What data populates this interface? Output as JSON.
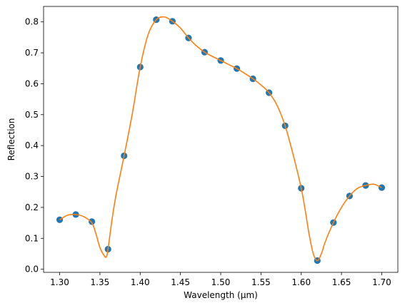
{
  "chart_data": {
    "type": "line",
    "title": "",
    "xlabel": "Wavelength (μm)",
    "ylabel": "Reflection",
    "xlim": [
      1.28,
      1.72
    ],
    "ylim": [
      -0.01,
      0.85
    ],
    "grid": false,
    "x_ticks": [
      "1.30",
      "1.35",
      "1.40",
      "1.45",
      "1.50",
      "1.55",
      "1.60",
      "1.65",
      "1.70"
    ],
    "y_ticks": [
      "0.0",
      "0.1",
      "0.2",
      "0.3",
      "0.4",
      "0.5",
      "0.6",
      "0.7",
      "0.8"
    ],
    "colors": {
      "points": "#1f77b4",
      "curve": "#ff7f0e",
      "axes": "#000000"
    },
    "series": [
      {
        "kind": "scatter",
        "x": [
          1.3,
          1.32,
          1.34,
          1.36,
          1.38,
          1.4,
          1.42,
          1.44,
          1.46,
          1.48,
          1.5,
          1.52,
          1.54,
          1.56,
          1.58,
          1.6,
          1.62,
          1.64,
          1.66,
          1.68,
          1.7
        ],
        "y": [
          0.16,
          0.177,
          0.154,
          0.065,
          0.367,
          0.654,
          0.807,
          0.802,
          0.748,
          0.702,
          0.675,
          0.649,
          0.616,
          0.571,
          0.464,
          0.262,
          0.028,
          0.151,
          0.237,
          0.271,
          0.264
        ]
      },
      {
        "kind": "line",
        "x": [
          1.3,
          1.31,
          1.32,
          1.33,
          1.34,
          1.345,
          1.35,
          1.355,
          1.358,
          1.36,
          1.365,
          1.37,
          1.38,
          1.39,
          1.4,
          1.41,
          1.42,
          1.43,
          1.44,
          1.45,
          1.46,
          1.47,
          1.48,
          1.49,
          1.5,
          1.51,
          1.52,
          1.53,
          1.54,
          1.55,
          1.56,
          1.57,
          1.58,
          1.59,
          1.6,
          1.605,
          1.61,
          1.615,
          1.62,
          1.625,
          1.63,
          1.64,
          1.65,
          1.66,
          1.67,
          1.68,
          1.69,
          1.7
        ],
        "y": [
          0.16,
          0.175,
          0.177,
          0.17,
          0.15,
          0.115,
          0.07,
          0.045,
          0.04,
          0.065,
          0.16,
          0.24,
          0.367,
          0.5,
          0.654,
          0.76,
          0.807,
          0.816,
          0.802,
          0.78,
          0.748,
          0.722,
          0.702,
          0.688,
          0.675,
          0.662,
          0.649,
          0.633,
          0.616,
          0.596,
          0.571,
          0.53,
          0.464,
          0.37,
          0.262,
          0.19,
          0.11,
          0.05,
          0.028,
          0.05,
          0.09,
          0.151,
          0.2,
          0.237,
          0.262,
          0.271,
          0.275,
          0.264
        ]
      }
    ]
  }
}
